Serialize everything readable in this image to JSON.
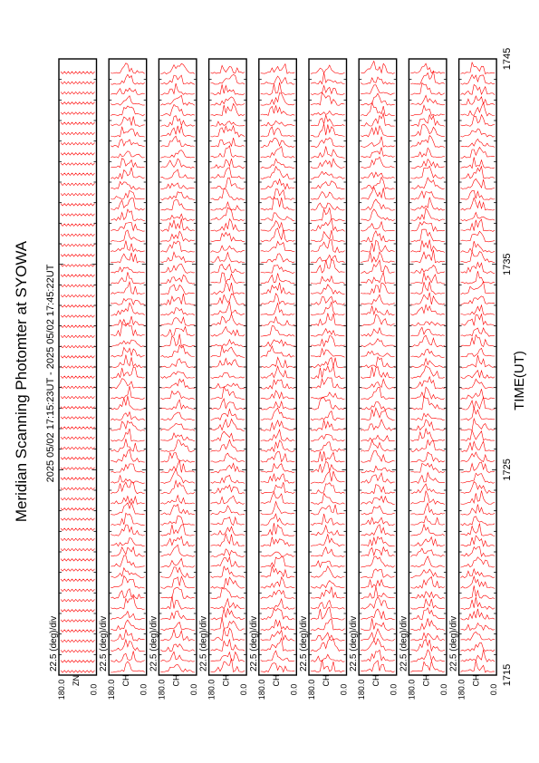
{
  "title": "Meridian Scanning Photomter at SYOWA",
  "time_range": "2025 05/02 17:15:23UT - 2025 05/02 17:45:22UT",
  "xlabel": "TIME(UT)",
  "scale_label": "22.5 (deg)/div",
  "trace_color": "#ff0000",
  "chart_data": {
    "type": "line",
    "x_ticks": [
      "1715",
      "1725",
      "1735",
      "1745"
    ],
    "xlim": [
      "1715",
      "1745"
    ],
    "y_ticks": [
      "180.0",
      "0.0"
    ],
    "channels": [
      "ZN",
      "CH",
      "CH",
      "CH",
      "CH",
      "CH",
      "CH",
      "CH",
      "CH"
    ]
  }
}
